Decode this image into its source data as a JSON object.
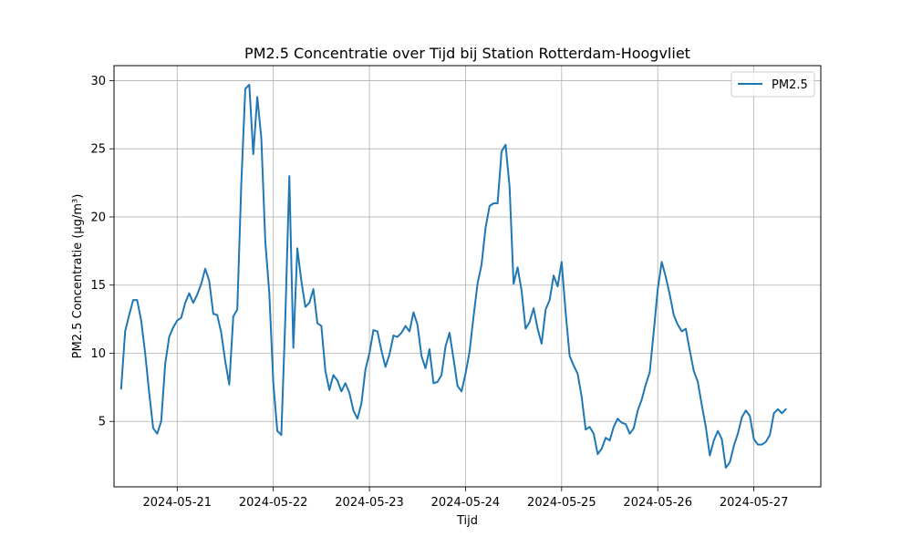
{
  "chart_data": {
    "type": "line",
    "title": "PM2.5 Concentratie over Tijd bij Station Rotterdam-Hoogvliet",
    "xlabel": "Tijd",
    "ylabel": "PM2.5 Concentratie (µg/m³)",
    "x_start": "2024-05-20T10:00",
    "x_step_hours": 1,
    "xticks": [
      "2024-05-21",
      "2024-05-22",
      "2024-05-23",
      "2024-05-24",
      "2024-05-25",
      "2024-05-26",
      "2024-05-27"
    ],
    "yticks": [
      5,
      10,
      15,
      20,
      25,
      30
    ],
    "ylim": [
      0.2,
      31.1
    ],
    "xlim": [
      "2024-05-20T08:13",
      "2024-05-27T16:43"
    ],
    "grid": true,
    "legend_position": "top-right",
    "series": [
      {
        "name": "PM2.5",
        "color": "#1f77b4",
        "values": [
          7.4,
          11.6,
          12.8,
          13.9,
          13.9,
          12.4,
          10.0,
          7.1,
          4.5,
          4.1,
          5.0,
          9.2,
          11.2,
          11.9,
          12.4,
          12.6,
          13.7,
          14.4,
          13.7,
          14.3,
          15.1,
          16.2,
          15.3,
          12.9,
          12.8,
          11.5,
          9.4,
          7.7,
          12.7,
          13.2,
          22.4,
          29.4,
          29.7,
          24.6,
          28.8,
          25.8,
          18.2,
          14.4,
          7.8,
          4.3,
          4.0,
          12.6,
          23.0,
          10.4,
          17.7,
          15.3,
          13.4,
          13.7,
          14.7,
          12.2,
          12.0,
          8.7,
          7.3,
          8.4,
          8.0,
          7.2,
          7.8,
          7.1,
          5.8,
          5.2,
          6.3,
          8.8,
          10.0,
          11.7,
          11.6,
          10.2,
          9.0,
          9.9,
          11.3,
          11.2,
          11.5,
          12.0,
          11.6,
          13.0,
          12.1,
          9.8,
          8.9,
          10.3,
          7.8,
          7.9,
          8.4,
          10.5,
          11.5,
          9.6,
          7.6,
          7.2,
          8.5,
          10.1,
          12.7,
          15.1,
          16.5,
          19.2,
          20.8,
          21.0,
          21.0,
          24.8,
          25.3,
          22.2,
          15.1,
          16.3,
          14.6,
          11.8,
          12.3,
          13.3,
          11.8,
          10.7,
          13.2,
          13.9,
          15.7,
          14.9,
          16.7,
          13.0,
          9.8,
          9.1,
          8.5,
          6.8,
          4.4,
          4.6,
          4.1,
          2.6,
          3.0,
          3.8,
          3.6,
          4.6,
          5.2,
          4.9,
          4.8,
          4.1,
          4.5,
          5.8,
          6.6,
          7.7,
          8.6,
          11.6,
          14.7,
          16.7,
          15.6,
          14.3,
          12.8,
          12.1,
          11.6,
          11.8,
          10.2,
          8.7,
          7.9,
          6.2,
          4.6,
          2.5,
          3.6,
          4.3,
          3.7,
          1.6,
          2.0,
          3.2,
          4.1,
          5.3,
          5.8,
          5.4,
          3.7,
          3.3,
          3.3,
          3.5,
          4.0,
          5.6,
          5.9,
          5.6,
          5.9
        ]
      }
    ]
  }
}
